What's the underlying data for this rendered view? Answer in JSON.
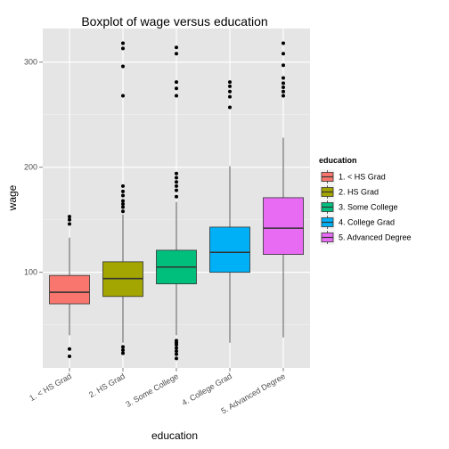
{
  "chart_data": {
    "type": "boxplot",
    "title": "Boxplot of wage versus education",
    "xlabel": "education",
    "ylabel": "wage",
    "ylim": [
      9,
      332
    ],
    "yticks": [
      100,
      200,
      300
    ],
    "grid": true,
    "legend": {
      "title": "education",
      "position": "right",
      "entries": [
        "1. < HS Grad",
        "2. HS Grad",
        "3. Some College",
        "4. College Grad",
        "5. Advanced Degree"
      ]
    },
    "categories": [
      "1. < HS Grad",
      "2. HS Grad",
      "3. Some College",
      "4. College Grad",
      "5. Advanced Degree"
    ],
    "colors": [
      "#F8766D",
      "#A3A500",
      "#00BF7D",
      "#00B0F6",
      "#E76BF3"
    ],
    "boxes": [
      {
        "lower_whisker": 40,
        "q1": 70,
        "median": 81,
        "q3": 97,
        "upper_whisker": 133,
        "outliers": [
          20,
          27,
          146,
          150,
          153
        ]
      },
      {
        "lower_whisker": 33,
        "q1": 77,
        "median": 94,
        "q3": 110,
        "upper_whisker": 155,
        "outliers": [
          23,
          26,
          29,
          158,
          162,
          165,
          168,
          173,
          177,
          182,
          268,
          296,
          313,
          318
        ]
      },
      {
        "lower_whisker": 40,
        "q1": 89,
        "median": 105,
        "q3": 121,
        "upper_whisker": 167,
        "outliers": [
          18,
          22,
          25,
          28,
          31,
          33,
          35,
          172,
          178,
          182,
          186,
          190,
          194,
          268,
          275,
          281,
          308,
          314
        ]
      },
      {
        "lower_whisker": 33,
        "q1": 100,
        "median": 119,
        "q3": 143,
        "upper_whisker": 201,
        "outliers": [
          257,
          267,
          272,
          277,
          281
        ]
      },
      {
        "lower_whisker": 38,
        "q1": 117,
        "median": 142,
        "q3": 171,
        "upper_whisker": 228,
        "outliers": [
          268,
          272,
          276,
          280,
          285,
          297,
          308,
          318
        ]
      }
    ]
  }
}
